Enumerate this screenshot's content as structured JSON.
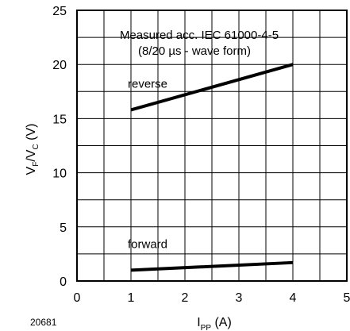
{
  "figure_number": "20681",
  "chart_data": {
    "type": "line",
    "title": "",
    "annotation": {
      "line1": "Measured acc. IEC 61000-4-5",
      "line2": "(8/20 µs - wave form)"
    },
    "xlabel": {
      "main": "I",
      "sub": "PP",
      "unit": " (A)"
    },
    "ylabel": {
      "v": "V",
      "sub1": "F",
      "slash": "/V",
      "sub2": "C",
      "unit": " (V)"
    },
    "xlim": [
      0,
      5
    ],
    "ylim": [
      0,
      25
    ],
    "xticks": [
      "0",
      "1",
      "2",
      "3",
      "4",
      "5"
    ],
    "yticks": [
      "0",
      "5",
      "10",
      "15",
      "20",
      "25"
    ],
    "x_grid_step": 0.5,
    "y_grid_step": 2.5,
    "grid": true,
    "series": [
      {
        "name": "reverse",
        "x": [
          1,
          4
        ],
        "y": [
          15.8,
          20.0
        ]
      },
      {
        "name": "forward",
        "x": [
          1,
          4
        ],
        "y": [
          1.0,
          1.7
        ]
      }
    ],
    "line_color": "#000000"
  }
}
